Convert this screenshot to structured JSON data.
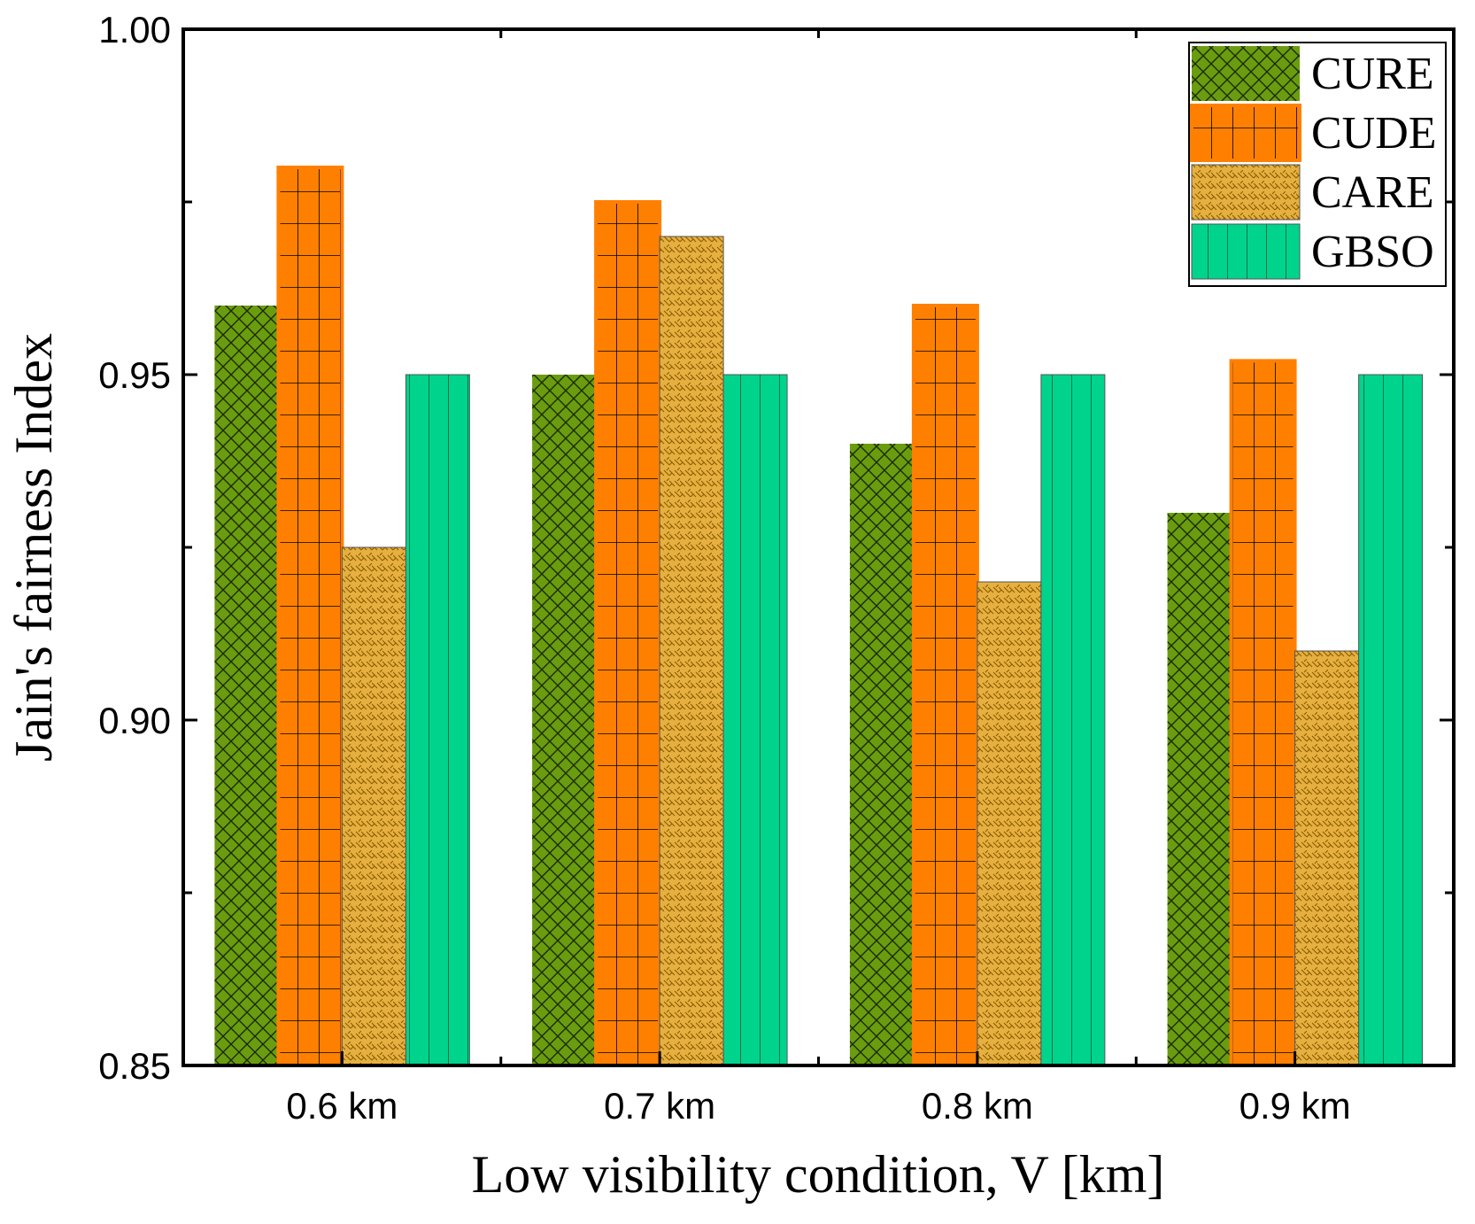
{
  "chart_data": {
    "type": "bar",
    "title": "",
    "xlabel": "Low visibility condition, V [km]",
    "ylabel": "Jain's fairness Index",
    "categories": [
      "0.6 km",
      "0.7 km",
      "0.8 km",
      "0.9 km"
    ],
    "ylim": [
      0.85,
      1.0
    ],
    "yticks": [
      0.85,
      0.9,
      0.95,
      1.0
    ],
    "ytick_labels": [
      "0.85",
      "0.90",
      "0.95",
      "1.00"
    ],
    "grid": false,
    "legend_position": "top-right",
    "series": [
      {
        "name": "CURE",
        "values": [
          0.96,
          0.95,
          0.94,
          0.93
        ],
        "color": "#6a9c10",
        "pattern": "crosshatch"
      },
      {
        "name": "CUDE",
        "values": [
          0.98,
          0.975,
          0.96,
          0.952
        ],
        "color": "#ff8000",
        "pattern": "grid"
      },
      {
        "name": "CARE",
        "values": [
          0.925,
          0.97,
          0.92,
          0.91
        ],
        "color": "#e6b040",
        "pattern": "weave"
      },
      {
        "name": "GBSO",
        "values": [
          0.95,
          0.95,
          0.95,
          0.95
        ],
        "color": "#00d48c",
        "pattern": "vertical"
      }
    ]
  }
}
